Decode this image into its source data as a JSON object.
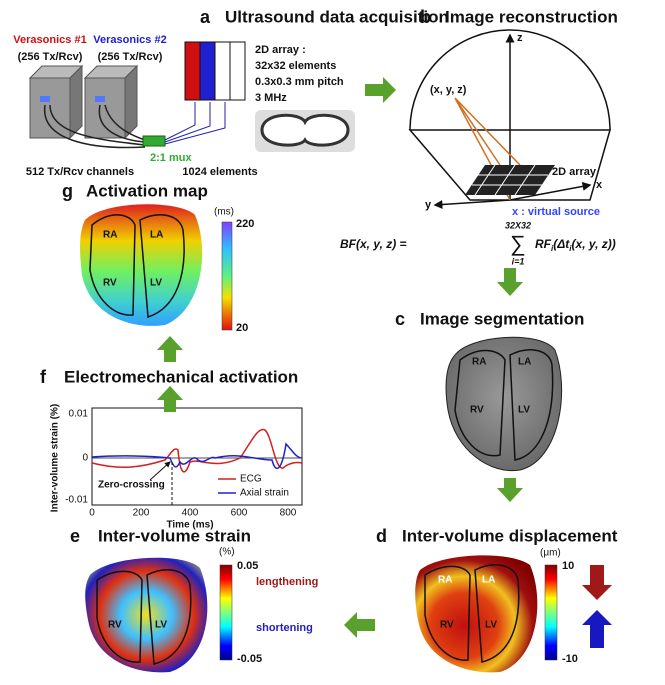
{
  "a": {
    "letter": "a",
    "title": "Ultrasound data acquisition",
    "device1": "Verasonics #1",
    "device1_channels": "(256 Tx/Rcv)",
    "device2": "Verasonics #2",
    "device2_channels": "(256 Tx/Rcv)",
    "array_lines": [
      "2D array :",
      "32x32 elements",
      "0.3x0.3 mm pitch",
      "3 MHz"
    ],
    "mux": "2:1 mux",
    "channels": "512 Tx/Rcv channels",
    "elements": "1024 elements"
  },
  "b": {
    "letter": "b",
    "title": "Image reconstruction",
    "point": "(x, y, z)",
    "axis_z": "z",
    "axis_x": "x",
    "axis_y": "y",
    "array": "2D array",
    "source": "x : virtual source",
    "formula": {
      "lhs": "BF(x, y, z) =",
      "sum_upper": "32X32",
      "sum": "∑",
      "sum_lower": "i=1",
      "rf": "RF",
      "rf_sub": "i",
      "dt": "(Δt",
      "dt_sub": "i",
      "end": "(x, y, z))"
    }
  },
  "c": {
    "letter": "c",
    "title": "Image segmentation",
    "chambers": [
      "RA",
      "LA",
      "RV",
      "LV"
    ]
  },
  "d": {
    "letter": "d",
    "title": "Inter-volume displacement",
    "unit": "(μm)",
    "max": "10",
    "min": "-10",
    "chambers": [
      "RA",
      "LA",
      "RV",
      "LV"
    ]
  },
  "e": {
    "letter": "e",
    "title": "Inter-volume strain",
    "unit": "(%)",
    "max": "0.05",
    "min": "-0.05",
    "upper_note": "lengthening",
    "lower_note": "shortening",
    "chambers": [
      "RV",
      "LV"
    ]
  },
  "f": {
    "letter": "f",
    "title": "Electromechanical activation",
    "y_label": "Inter-volume strain (%)",
    "y_ticks": [
      "0.01",
      "0",
      "-0.01"
    ],
    "x_label": "Time (ms)",
    "x_ticks": [
      "0",
      "200",
      "400",
      "600",
      "800"
    ],
    "legend": [
      "ECG",
      "Axial strain"
    ],
    "annotation": "Zero-crossing"
  },
  "g": {
    "letter": "g",
    "title": "Activation map",
    "unit": "(ms)",
    "max": "220",
    "min": "20",
    "chambers": [
      "RA",
      "LA",
      "RV",
      "LV"
    ]
  }
}
